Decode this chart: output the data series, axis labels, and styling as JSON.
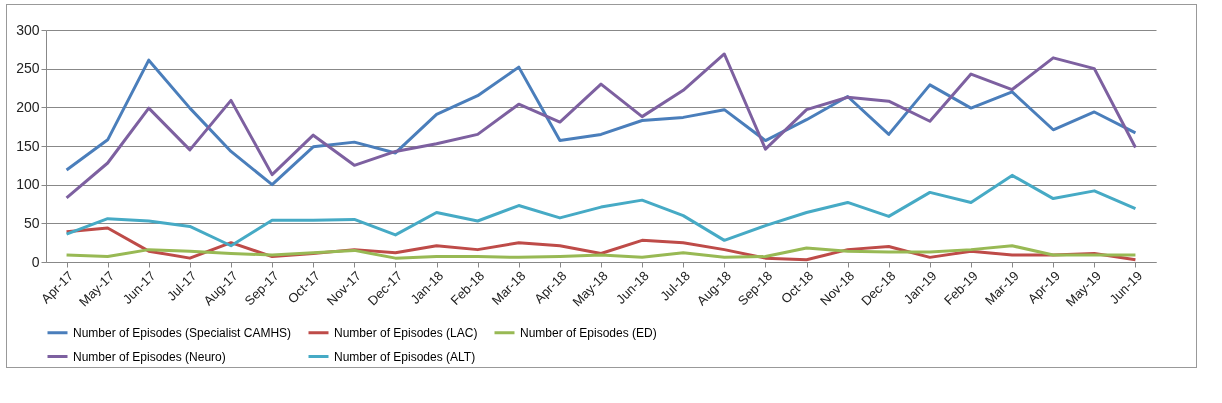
{
  "chart_data": {
    "type": "line",
    "categories": [
      "Apr-17",
      "May-17",
      "Jun-17",
      "Jul-17",
      "Aug-17",
      "Sep-17",
      "Oct-17",
      "Nov-17",
      "Dec-17",
      "Jan-18",
      "Feb-18",
      "Mar-18",
      "Apr-18",
      "May-18",
      "Jun-18",
      "Jul-18",
      "Aug-18",
      "Sep-18",
      "Oct-18",
      "Nov-18",
      "Dec-18",
      "Jan-19",
      "Feb-19",
      "Mar-19",
      "Apr-19",
      "May-19",
      "Jun-19"
    ],
    "series": [
      {
        "name": "Number of Episodes (Specialist CAMHS)",
        "color": "#4a7ebb",
        "values": [
          119,
          158,
          261,
          199,
          143,
          100,
          149,
          155,
          141,
          191,
          215,
          252,
          157,
          165,
          183,
          187,
          197,
          157,
          184,
          214,
          165,
          229,
          199,
          220,
          171,
          194,
          167
        ]
      },
      {
        "name": "Number of Episodes (LAC)",
        "color": "#be4b48",
        "values": [
          39,
          44,
          14,
          5,
          25,
          7,
          11,
          16,
          12,
          21,
          16,
          25,
          21,
          11,
          28,
          25,
          16,
          5,
          3,
          16,
          20,
          6,
          14,
          9,
          9,
          11,
          3
        ]
      },
      {
        "name": "Number of Episodes (ED)",
        "color": "#98b954",
        "values": [
          9,
          7,
          16,
          14,
          11,
          9,
          12,
          15,
          5,
          7,
          7,
          6,
          7,
          9,
          6,
          12,
          6,
          7,
          18,
          14,
          13,
          13,
          16,
          21,
          9,
          9,
          9
        ]
      },
      {
        "name": "Number of Episodes (Neuro)",
        "color": "#7d60a0",
        "values": [
          83,
          128,
          199,
          145,
          209,
          113,
          164,
          125,
          143,
          153,
          165,
          204,
          181,
          230,
          188,
          222,
          269,
          146,
          197,
          213,
          208,
          182,
          243,
          223,
          264,
          250,
          148
        ]
      },
      {
        "name": "Number of Episodes (ALT)",
        "color": "#46aac5",
        "values": [
          36,
          56,
          53,
          46,
          21,
          54,
          54,
          55,
          35,
          64,
          53,
          73,
          57,
          71,
          80,
          60,
          28,
          47,
          64,
          77,
          59,
          90,
          77,
          112,
          82,
          92,
          69
        ]
      }
    ],
    "ylim": [
      0,
      300
    ],
    "yticks": [
      0,
      50,
      100,
      150,
      200,
      250,
      300
    ],
    "grid": "y",
    "legend": "bottom",
    "marker": "none",
    "line_style": "solid"
  }
}
